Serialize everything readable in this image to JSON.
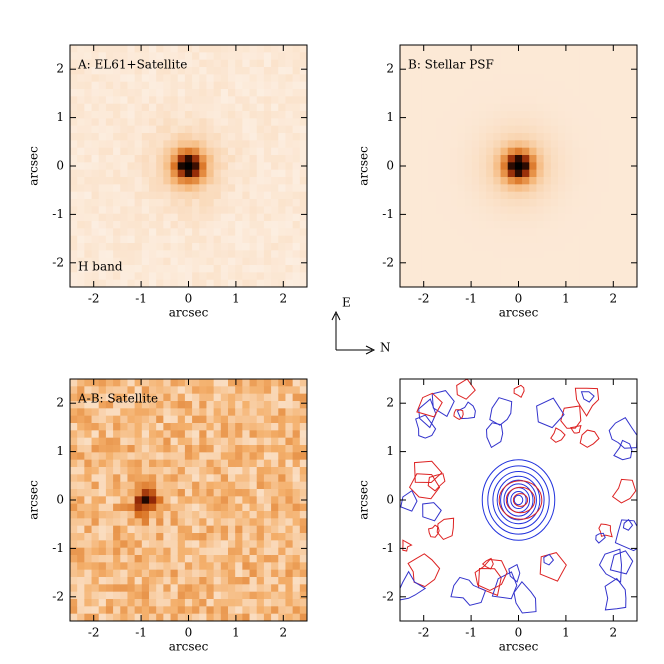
{
  "chart_data": [
    {
      "type": "image",
      "title": "A: EL61+Satellite",
      "annotation": "H band",
      "xlabel": "arcsec",
      "ylabel": "arcsec",
      "xlim": [
        -2.5,
        2.5
      ],
      "ylim": [
        -2.5,
        2.5
      ],
      "xticks": [
        -2,
        -1,
        0,
        1,
        2
      ],
      "yticks": [
        -2,
        -1,
        0,
        1,
        2
      ]
    },
    {
      "type": "image",
      "title": "B: Stellar PSF",
      "xlabel": "arcsec",
      "ylabel": "arcsec",
      "xlim": [
        -2.5,
        2.5
      ],
      "ylim": [
        -2.5,
        2.5
      ],
      "xticks": [
        -2,
        -1,
        0,
        1,
        2
      ],
      "yticks": [
        -2,
        -1,
        0,
        1,
        2
      ]
    },
    {
      "type": "image",
      "title": "A-B: Satellite",
      "xlabel": "arcsec",
      "ylabel": "arcsec",
      "xlim": [
        -2.5,
        2.5
      ],
      "ylim": [
        -2.5,
        2.5
      ],
      "xticks": [
        -2,
        -1,
        0,
        1,
        2
      ],
      "yticks": [
        -2,
        -1,
        0,
        1,
        2
      ]
    },
    {
      "type": "contour",
      "xlabel": "arcsec",
      "ylabel": "arcsec",
      "xlim": [
        -2.5,
        2.5
      ],
      "ylim": [
        -2.5,
        2.5
      ],
      "xticks": [
        -2,
        -1,
        0,
        1,
        2
      ],
      "yticks": [
        -2,
        -1,
        0,
        1,
        2
      ]
    }
  ],
  "compass": {
    "east": "E",
    "north": "N"
  }
}
